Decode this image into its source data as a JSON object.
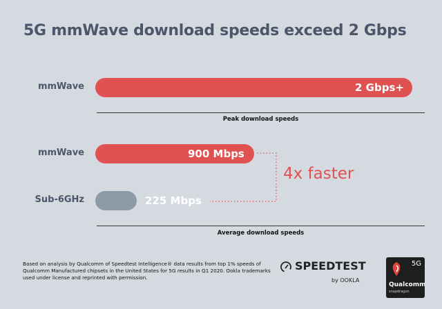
{
  "chart_data": [
    {
      "type": "bar",
      "orientation": "horizontal",
      "categories": [
        "mmWave"
      ],
      "values": [
        2000
      ],
      "data_labels": [
        "2 Gbps+"
      ],
      "xlabel": "Peak download speeds",
      "unit": "Mbps",
      "colors": [
        "#e05252"
      ]
    },
    {
      "type": "bar",
      "orientation": "horizontal",
      "categories": [
        "mmWave",
        "Sub-6GHz"
      ],
      "values": [
        900,
        225
      ],
      "data_labels": [
        "900 Mbps",
        "225 Mbps"
      ],
      "xlabel": "Average download speeds",
      "unit": "Mbps",
      "colors": [
        "#e05252",
        "#8f9aa8"
      ],
      "annotation": "4x faster"
    }
  ],
  "title": "5G mmWave download speeds exceed 2 Gbps",
  "footnote": "Based on analysis by Qualcomm of Speedtest Intelligence® data results from top 1% speeds of Qualcomm Manufactured chipsets in the United States for 5G results in Q1 2020. Ookla trademarks used under license and reprinted with permission.",
  "logos": {
    "speedtest": "SPEEDTEST",
    "by_ookla": "by OOKLA",
    "qualcomm_5g": "5G",
    "qualcomm": "Qualcomm",
    "snapdragon": "snapdragon"
  },
  "colors": {
    "accent": "#e05252",
    "secondary": "#8f9aa8",
    "background": "#d5dae1",
    "title": "#4b566a"
  }
}
